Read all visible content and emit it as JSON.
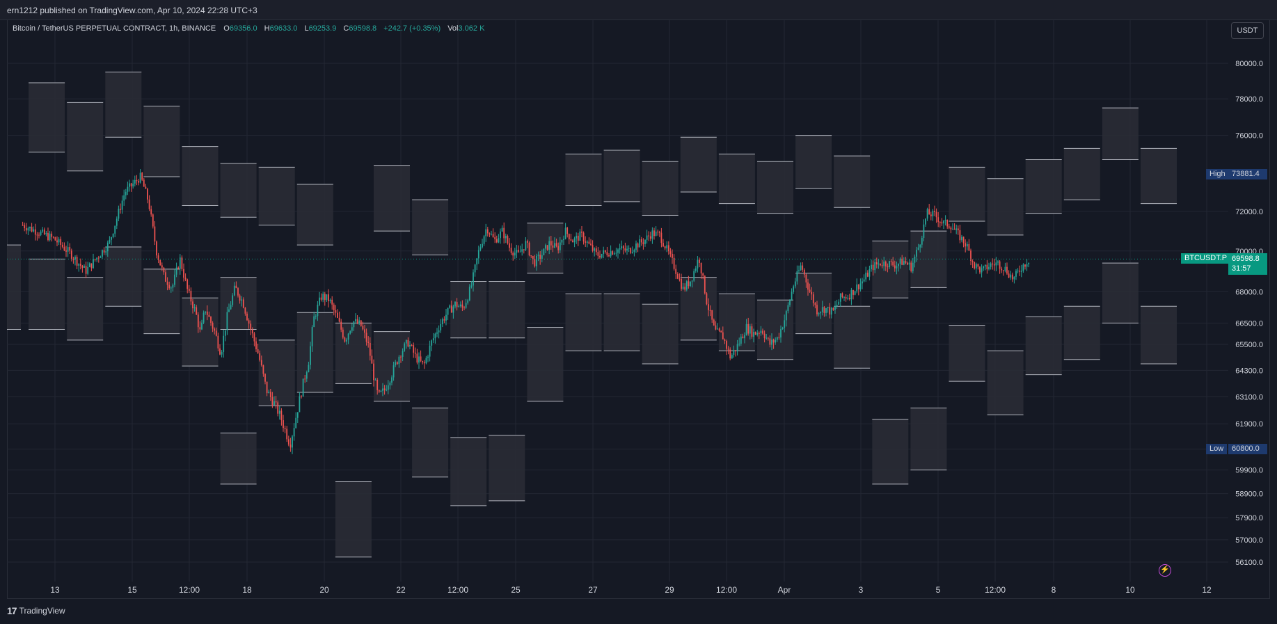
{
  "header": {
    "published": "ern1212 published on TradingView.com, Apr 10, 2024 22:28 UTC+3"
  },
  "legend": {
    "symbol": "Bitcoin / TetherUS PERPETUAL CONTRACT, 1h, BINANCE",
    "o_label": "O",
    "o_value": "69356.0",
    "h_label": "H",
    "h_value": "69633.0",
    "l_label": "L",
    "l_value": "69253.9",
    "c_label": "C",
    "c_value": "69598.8",
    "change": "+242.7 (+0.35%)",
    "vol_label": "Vol",
    "vol_value": "3.062 K"
  },
  "currency_button": "USDT",
  "markers": {
    "high_label": "High",
    "high_value": "73881.4",
    "low_label": "Low",
    "low_value": "60800.0",
    "last_symbol": "BTCUSDT.P",
    "last_value": "69598.8",
    "countdown": "31:57"
  },
  "footer": {
    "brand": "TradingView",
    "logo_glyph": "17"
  },
  "icons": {
    "bolt": "⚡"
  },
  "colors": {
    "background": "#151924",
    "grid": "#232733",
    "up": "#26a69a",
    "down": "#ef5350",
    "box_fill": "#2a2d36",
    "box_edge": "#b2b5be",
    "last_price": "#089981",
    "high_low": "#1e3a6e"
  },
  "chart_data": {
    "type": "candlestick",
    "price_axis": {
      "ticks": [
        "80000.0",
        "78000.0",
        "76000.0",
        "72000.0",
        "70000.0",
        "68000.0",
        "66500.0",
        "65500.0",
        "64300.0",
        "63100.0",
        "61900.0",
        "60800.0",
        "59900.0",
        "58900.0",
        "57900.0",
        "57000.0",
        "56100.0"
      ],
      "scale": "log"
    },
    "time_axis": {
      "ticks": [
        "13",
        "15",
        "12:00",
        "18",
        "20",
        "22",
        "12:00",
        "25",
        "27",
        "29",
        "12:00",
        "Apr",
        "3",
        "5",
        "12:00",
        "8",
        "10",
        "12"
      ]
    },
    "high": 73881.4,
    "low": 60800.0,
    "last": 69598.8,
    "price_path": [
      [
        11,
        71300
      ],
      [
        13,
        70600
      ],
      [
        14,
        69900
      ],
      [
        15,
        69000
      ],
      [
        16.5,
        70400
      ],
      [
        17.5,
        73000
      ],
      [
        18,
        73400
      ],
      [
        18.5,
        73800
      ],
      [
        19,
        72500
      ],
      [
        19.5,
        70000
      ],
      [
        20,
        68700
      ],
      [
        20.5,
        68200
      ],
      [
        21,
        69600
      ],
      [
        21.5,
        68000
      ],
      [
        22,
        67000
      ],
      [
        22.3,
        66000
      ],
      [
        22.6,
        67200
      ],
      [
        23.2,
        66100
      ],
      [
        23.6,
        65100
      ],
      [
        24,
        66800
      ],
      [
        24.5,
        68200
      ],
      [
        25,
        67500
      ],
      [
        25.5,
        66200
      ],
      [
        26,
        65000
      ],
      [
        26.5,
        63400
      ],
      [
        27,
        62800
      ],
      [
        27.4,
        62200
      ],
      [
        27.8,
        61400
      ],
      [
        28,
        61000
      ],
      [
        28.4,
        62300
      ],
      [
        28.8,
        63600
      ],
      [
        29.2,
        64800
      ],
      [
        29.5,
        66700
      ],
      [
        30,
        67800
      ],
      [
        30.5,
        67600
      ],
      [
        31,
        66700
      ],
      [
        31.5,
        65700
      ],
      [
        32,
        66600
      ],
      [
        32.5,
        66400
      ],
      [
        33,
        65400
      ],
      [
        33.3,
        64100
      ],
      [
        33.6,
        63100
      ],
      [
        34,
        63400
      ],
      [
        34.5,
        64200
      ],
      [
        35,
        65100
      ],
      [
        35.5,
        65600
      ],
      [
        36,
        64900
      ],
      [
        36.5,
        64500
      ],
      [
        37,
        65600
      ],
      [
        37.5,
        66400
      ],
      [
        38,
        67000
      ],
      [
        38.5,
        67400
      ],
      [
        39,
        67200
      ],
      [
        39.5,
        68200
      ],
      [
        40,
        70000
      ],
      [
        40.5,
        71200
      ],
      [
        41,
        70500
      ],
      [
        41.5,
        71000
      ],
      [
        42,
        70100
      ],
      [
        42.5,
        69800
      ],
      [
        43,
        70400
      ],
      [
        43.5,
        69400
      ],
      [
        44,
        69800
      ],
      [
        44.5,
        70400
      ],
      [
        45,
        70100
      ],
      [
        45.5,
        71000
      ],
      [
        46,
        70500
      ],
      [
        46.5,
        70800
      ],
      [
        47,
        70300
      ],
      [
        47.5,
        69800
      ],
      [
        48,
        69900
      ],
      [
        48.5,
        70000
      ],
      [
        49,
        70100
      ],
      [
        49.5,
        70000
      ],
      [
        50,
        70300
      ],
      [
        50.5,
        70500
      ],
      [
        51,
        70900
      ],
      [
        51.5,
        70800
      ],
      [
        52,
        70000
      ],
      [
        52.5,
        69100
      ],
      [
        53,
        68100
      ],
      [
        53.5,
        68600
      ],
      [
        54,
        69700
      ],
      [
        54.5,
        67500
      ],
      [
        55,
        66100
      ],
      [
        55.5,
        65900
      ],
      [
        56,
        64900
      ],
      [
        56.5,
        65500
      ],
      [
        57,
        66300
      ],
      [
        57.5,
        66000
      ],
      [
        58,
        66200
      ],
      [
        58.5,
        65500
      ],
      [
        59,
        65800
      ],
      [
        59.5,
        66800
      ],
      [
        60,
        68300
      ],
      [
        60.5,
        69300
      ],
      [
        61,
        68100
      ],
      [
        61.5,
        67100
      ],
      [
        62,
        67200
      ],
      [
        62.5,
        67000
      ],
      [
        63,
        67700
      ],
      [
        63.5,
        67800
      ],
      [
        64,
        68200
      ],
      [
        64.5,
        68600
      ],
      [
        65,
        69200
      ],
      [
        65.5,
        69400
      ],
      [
        66,
        69400
      ],
      [
        66.5,
        69300
      ],
      [
        67,
        69500
      ],
      [
        67.5,
        69200
      ],
      [
        68,
        70300
      ],
      [
        68.5,
        71900
      ],
      [
        69,
        71800
      ],
      [
        69.5,
        71400
      ],
      [
        70,
        71300
      ],
      [
        70.5,
        70800
      ],
      [
        71,
        70300
      ],
      [
        71.5,
        69300
      ],
      [
        72,
        69000
      ],
      [
        72.5,
        69300
      ],
      [
        73,
        69400
      ],
      [
        73.5,
        69100
      ],
      [
        74,
        68600
      ],
      [
        74.5,
        69200
      ],
      [
        75,
        69600
      ]
    ],
    "boxes": [
      [
        0,
        70300,
        66200
      ],
      [
        1,
        78900,
        75100
      ],
      [
        1,
        69600,
        66200
      ],
      [
        2,
        77800,
        74100
      ],
      [
        2,
        68700,
        65700
      ],
      [
        3,
        79500,
        75900
      ],
      [
        3,
        70200,
        67300
      ],
      [
        4,
        77600,
        73800
      ],
      [
        4,
        69100,
        66000
      ],
      [
        5,
        75400,
        72300
      ],
      [
        5,
        67700,
        64500
      ],
      [
        6,
        74500,
        71700
      ],
      [
        6,
        68700,
        66200
      ],
      [
        6,
        61500,
        59300
      ],
      [
        7,
        74300,
        71300
      ],
      [
        7,
        65700,
        62700
      ],
      [
        8,
        73400,
        70300
      ],
      [
        8,
        67000,
        63300
      ],
      [
        9,
        59400,
        56300
      ],
      [
        9,
        66500,
        63700
      ],
      [
        10,
        74400,
        71000
      ],
      [
        10,
        66100,
        62900
      ],
      [
        11,
        72600,
        69800
      ],
      [
        11,
        62600,
        59600
      ],
      [
        12,
        68500,
        65800
      ],
      [
        12,
        61300,
        58400
      ],
      [
        13,
        68500,
        65800
      ],
      [
        13,
        61400,
        58600
      ],
      [
        14,
        71400,
        68900
      ],
      [
        14,
        66300,
        62900
      ],
      [
        15,
        75000,
        72300
      ],
      [
        15,
        67900,
        65200
      ],
      [
        16,
        75200,
        72500
      ],
      [
        16,
        67900,
        65200
      ],
      [
        17,
        74600,
        71800
      ],
      [
        17,
        67400,
        64600
      ],
      [
        18,
        75900,
        73000
      ],
      [
        18,
        68700,
        65700
      ],
      [
        19,
        75000,
        72400
      ],
      [
        19,
        67900,
        65200
      ],
      [
        20,
        74600,
        71900
      ],
      [
        20,
        67600,
        64800
      ],
      [
        21,
        76000,
        73200
      ],
      [
        21,
        68900,
        66000
      ],
      [
        22,
        74900,
        72200
      ],
      [
        22,
        67300,
        64400
      ],
      [
        23,
        70500,
        67700
      ],
      [
        23,
        62100,
        59300
      ],
      [
        24,
        71000,
        68200
      ],
      [
        24,
        62600,
        59900
      ],
      [
        25,
        74300,
        71500
      ],
      [
        25,
        66400,
        63800
      ],
      [
        26,
        73700,
        70800
      ],
      [
        26,
        65200,
        62300
      ],
      [
        27,
        74700,
        71900
      ],
      [
        27,
        66800,
        64100
      ],
      [
        28,
        75300,
        72600
      ],
      [
        28,
        67300,
        64800
      ],
      [
        29,
        77500,
        74700
      ],
      [
        29,
        69400,
        66500
      ],
      [
        30,
        75300,
        72400
      ],
      [
        30,
        67300,
        64600
      ]
    ]
  }
}
